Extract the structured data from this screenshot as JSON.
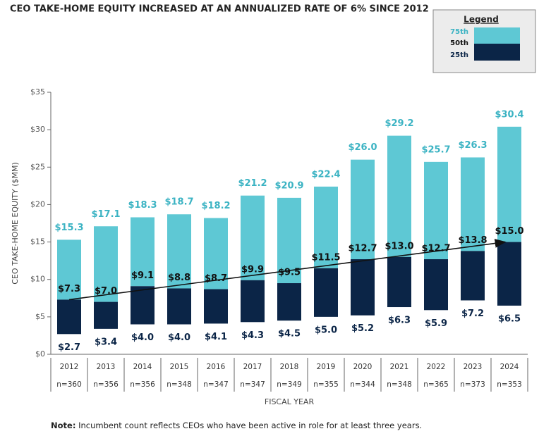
{
  "chart_data": {
    "type": "floating-bar",
    "title": "CEO TAKE-HOME EQUITY INCREASED AT AN ANNUALIZED RATE OF 6% SINCE 2012",
    "legend_title": "Legend",
    "y_label": "CEO TAKE-HOME EQUITY ($MM)",
    "x_label": "FISCAL YEAR",
    "categories": [
      "2012",
      "2013",
      "2014",
      "2015",
      "2016",
      "2017",
      "2018",
      "2019",
      "2020",
      "2021",
      "2022",
      "2023",
      "2024"
    ],
    "counts": [
      "n=360",
      "n=356",
      "n=356",
      "n=348",
      "n=347",
      "n=347",
      "n=349",
      "n=355",
      "n=344",
      "n=348",
      "n=365",
      "n=373",
      "n=353"
    ],
    "series": [
      {
        "name": "75th",
        "color": "#5ec8d4",
        "label_color": "#3bb3c3",
        "values": [
          15.3,
          17.1,
          18.3,
          18.7,
          18.2,
          21.2,
          20.9,
          22.4,
          26.0,
          29.2,
          25.7,
          26.3,
          30.4
        ],
        "value_labels": [
          "$15.3",
          "$17.1",
          "$18.3",
          "$18.7",
          "$18.2",
          "$21.2",
          "$20.9",
          "$22.4",
          "$26.0",
          "$29.2",
          "$25.7",
          "$26.3",
          "$30.4"
        ]
      },
      {
        "name": "50th",
        "color": "#0b2547",
        "label_color": "#111111",
        "values": [
          7.3,
          7.0,
          9.1,
          8.8,
          8.7,
          9.9,
          9.5,
          11.5,
          12.7,
          13.0,
          12.7,
          13.8,
          15.0
        ],
        "value_labels": [
          "$7.3",
          "$7.0",
          "$9.1",
          "$8.8",
          "$8.7",
          "$9.9",
          "$9.5",
          "$11.5",
          "$12.7",
          "$13.0",
          "$12.7",
          "$13.8",
          "$15.0"
        ]
      },
      {
        "name": "25th",
        "color": "#0b2547",
        "label_color": "#0b2547",
        "values": [
          2.7,
          3.4,
          4.0,
          4.0,
          4.1,
          4.3,
          4.5,
          5.0,
          5.2,
          6.3,
          5.9,
          7.2,
          6.5
        ],
        "value_labels": [
          "$2.7",
          "$3.4",
          "$4.0",
          "$4.0",
          "$4.1",
          "$4.3",
          "$4.5",
          "$5.0",
          "$5.2",
          "$6.3",
          "$5.9",
          "$7.2",
          "$6.5"
        ]
      }
    ],
    "ylim": [
      0,
      35
    ],
    "yticks": [
      {
        "value": 0,
        "label": "$0"
      },
      {
        "value": 5,
        "label": "$5"
      },
      {
        "value": 10,
        "label": "$10"
      },
      {
        "value": 15,
        "label": "$15"
      },
      {
        "value": 20,
        "label": "$20"
      },
      {
        "value": 25,
        "label": "$25"
      },
      {
        "value": 30,
        "label": "$30"
      },
      {
        "value": 35,
        "label": "$35"
      }
    ],
    "note_label": "Note:",
    "note": "Incumbent count reflects CEOs who have been active in role for at least three years."
  }
}
